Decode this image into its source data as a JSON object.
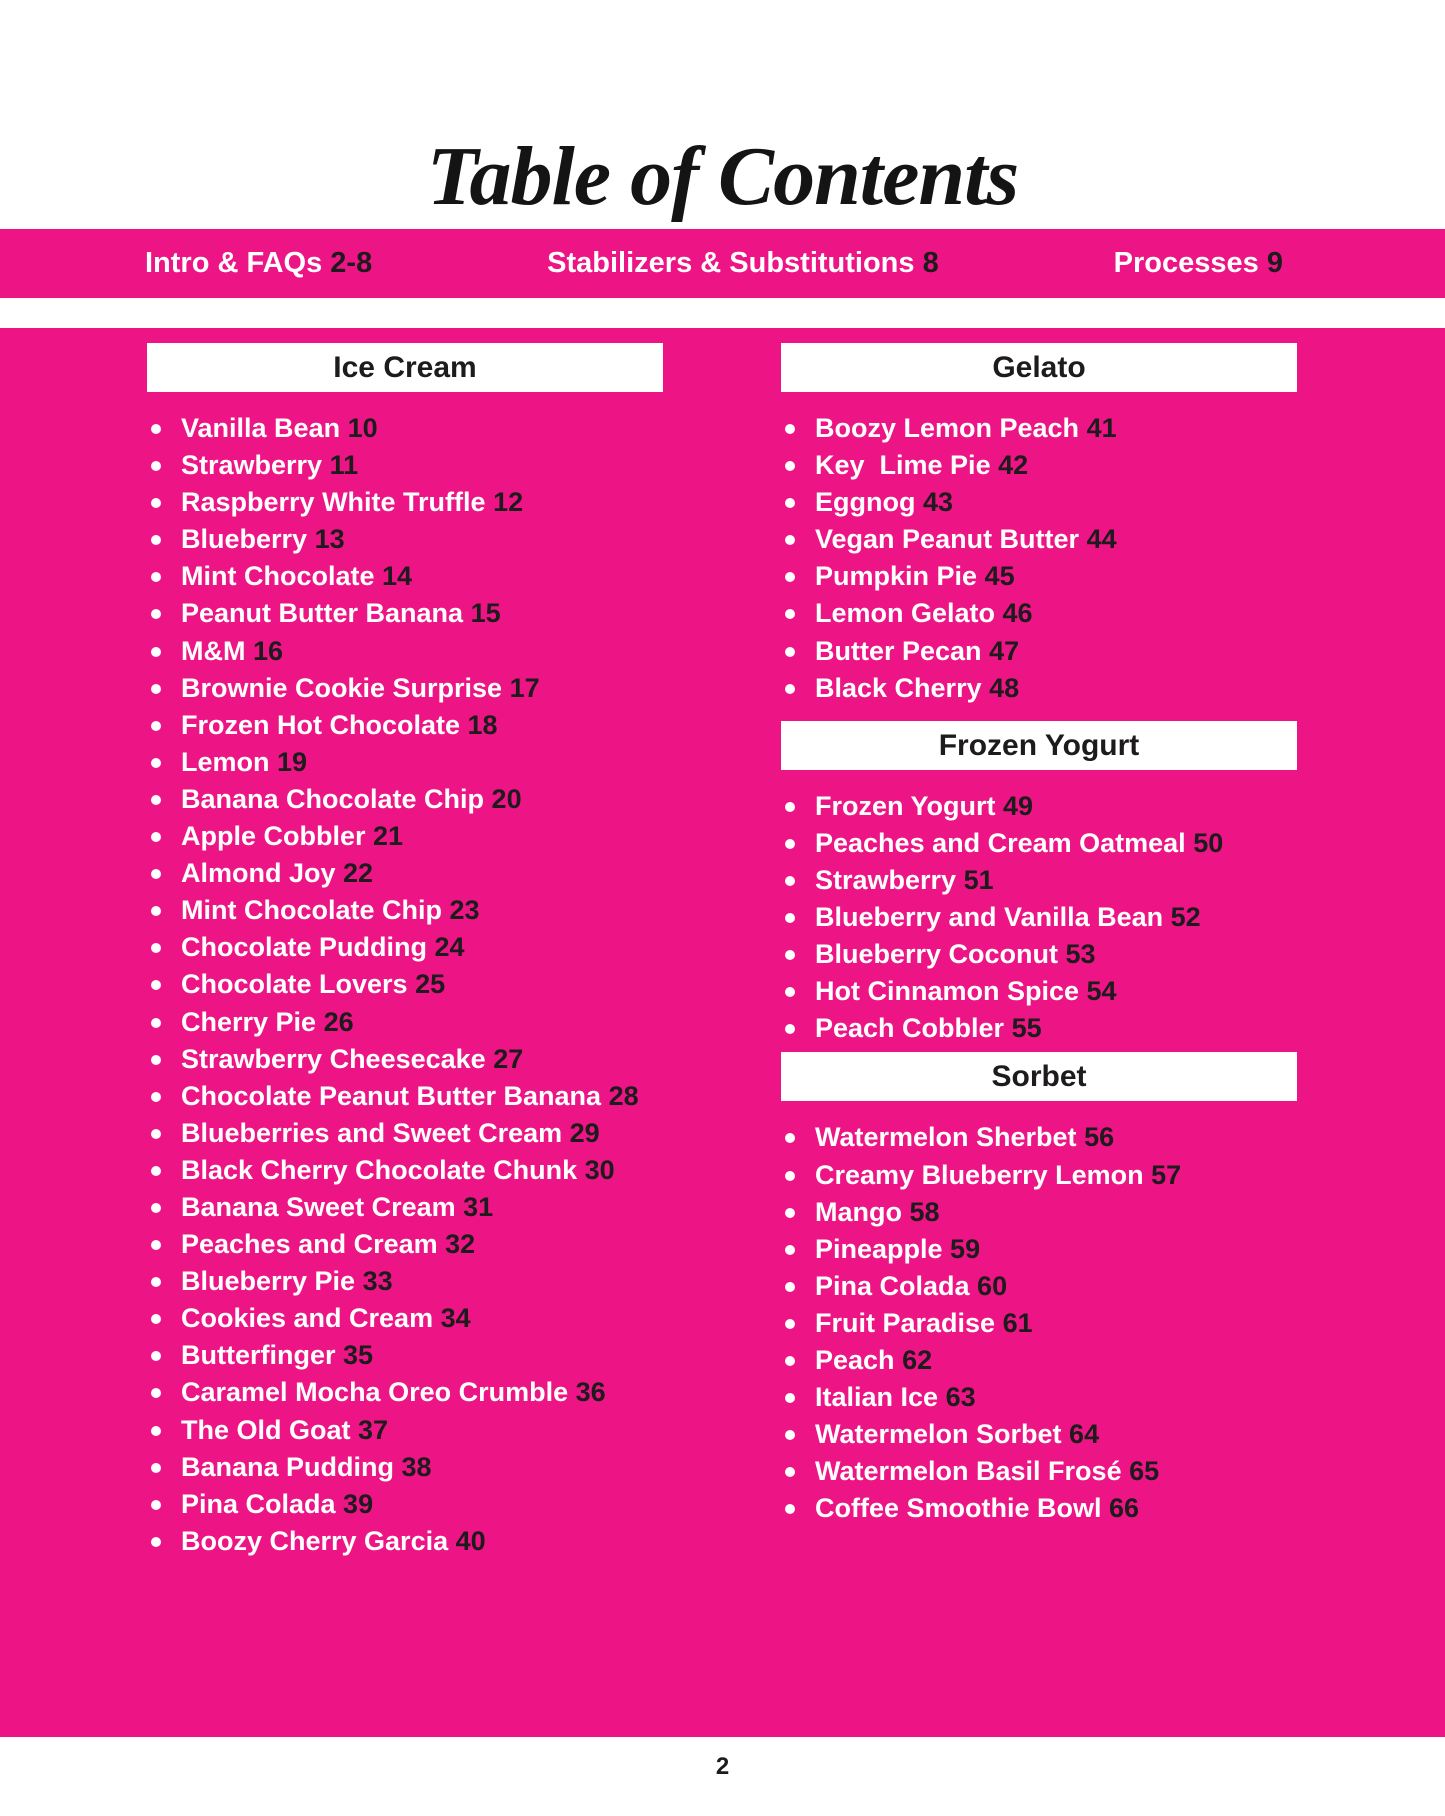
{
  "page": {
    "title": "Table of Contents",
    "page_number": "2",
    "colors": {
      "pink": "#ED1586",
      "ink": "#1D1B1C",
      "paper": "#FFFFFF"
    }
  },
  "nav": {
    "items": [
      {
        "label": "Intro & FAQs",
        "pages": "2-8"
      },
      {
        "label": "Stabilizers & Substitutions",
        "pages": "8"
      },
      {
        "label": "Processes",
        "pages": "9"
      }
    ]
  },
  "sections": [
    {
      "title": "Ice Cream",
      "items": [
        {
          "name": "Vanilla Bean",
          "page": "10"
        },
        {
          "name": "Strawberry",
          "page": "11"
        },
        {
          "name": "Raspberry White Truffle",
          "page": "12"
        },
        {
          "name": "Blueberry",
          "page": "13"
        },
        {
          "name": "Mint Chocolate",
          "page": "14"
        },
        {
          "name": "Peanut Butter Banana",
          "page": "15"
        },
        {
          "name": "M&M",
          "page": "16"
        },
        {
          "name": "Brownie Cookie Surprise",
          "page": "17"
        },
        {
          "name": "Frozen Hot Chocolate",
          "page": "18"
        },
        {
          "name": "Lemon",
          "page": "19"
        },
        {
          "name": "Banana Chocolate Chip",
          "page": "20"
        },
        {
          "name": "Apple Cobbler",
          "page": "21"
        },
        {
          "name": "Almond Joy",
          "page": "22"
        },
        {
          "name": "Mint Chocolate Chip",
          "page": "23"
        },
        {
          "name": "Chocolate Pudding",
          "page": "24"
        },
        {
          "name": "Chocolate Lovers",
          "page": "25"
        },
        {
          "name": "Cherry Pie",
          "page": "26"
        },
        {
          "name": "Strawberry Cheesecake",
          "page": "27"
        },
        {
          "name": "Chocolate Peanut Butter Banana",
          "page": "28"
        },
        {
          "name": "Blueberries and Sweet Cream",
          "page": "29"
        },
        {
          "name": "Black Cherry Chocolate Chunk",
          "page": "30"
        },
        {
          "name": "Banana Sweet Cream",
          "page": "31"
        },
        {
          "name": "Peaches and Cream",
          "page": "32"
        },
        {
          "name": "Blueberry Pie",
          "page": "33"
        },
        {
          "name": "Cookies and Cream",
          "page": "34"
        },
        {
          "name": "Butterfinger",
          "page": "35"
        },
        {
          "name": "Caramel Mocha Oreo Crumble",
          "page": "36"
        },
        {
          "name": "The Old Goat",
          "page": "37"
        },
        {
          "name": "Banana Pudding",
          "page": "38"
        },
        {
          "name": "Pina Colada",
          "page": "39"
        },
        {
          "name": "Boozy Cherry Garcia",
          "page": "40"
        }
      ]
    },
    {
      "title": "Gelato",
      "items": [
        {
          "name": "Boozy Lemon Peach",
          "page": "41"
        },
        {
          "name": "Key  Lime Pie",
          "page": "42"
        },
        {
          "name": "Eggnog",
          "page": "43"
        },
        {
          "name": "Vegan Peanut Butter",
          "page": "44"
        },
        {
          "name": "Pumpkin Pie",
          "page": "45"
        },
        {
          "name": "Lemon Gelato",
          "page": "46"
        },
        {
          "name": "Butter Pecan",
          "page": "47"
        },
        {
          "name": "Black Cherry",
          "page": "48"
        }
      ]
    },
    {
      "title": "Frozen Yogurt",
      "items": [
        {
          "name": "Frozen Yogurt",
          "page": "49"
        },
        {
          "name": "Peaches and Cream Oatmeal",
          "page": "50"
        },
        {
          "name": "Strawberry",
          "page": "51"
        },
        {
          "name": "Blueberry and Vanilla Bean",
          "page": "52"
        },
        {
          "name": "Blueberry Coconut",
          "page": "53"
        },
        {
          "name": "Hot Cinnamon Spice",
          "page": "54"
        },
        {
          "name": "Peach Cobbler",
          "page": "55"
        }
      ]
    },
    {
      "title": "Sorbet",
      "items": [
        {
          "name": "Watermelon Sherbet",
          "page": "56"
        },
        {
          "name": "Creamy Blueberry Lemon",
          "page": "57"
        },
        {
          "name": "Mango",
          "page": "58"
        },
        {
          "name": "Pineapple",
          "page": "59"
        },
        {
          "name": "Pina Colada",
          "page": "60"
        },
        {
          "name": "Fruit Paradise",
          "page": "61"
        },
        {
          "name": "Peach",
          "page": "62"
        },
        {
          "name": "Italian Ice",
          "page": "63"
        },
        {
          "name": "Watermelon Sorbet",
          "page": "64"
        },
        {
          "name": "Watermelon Basil Frosé",
          "page": "65"
        },
        {
          "name": "Coffee Smoothie Bowl",
          "page": "66"
        }
      ]
    }
  ]
}
